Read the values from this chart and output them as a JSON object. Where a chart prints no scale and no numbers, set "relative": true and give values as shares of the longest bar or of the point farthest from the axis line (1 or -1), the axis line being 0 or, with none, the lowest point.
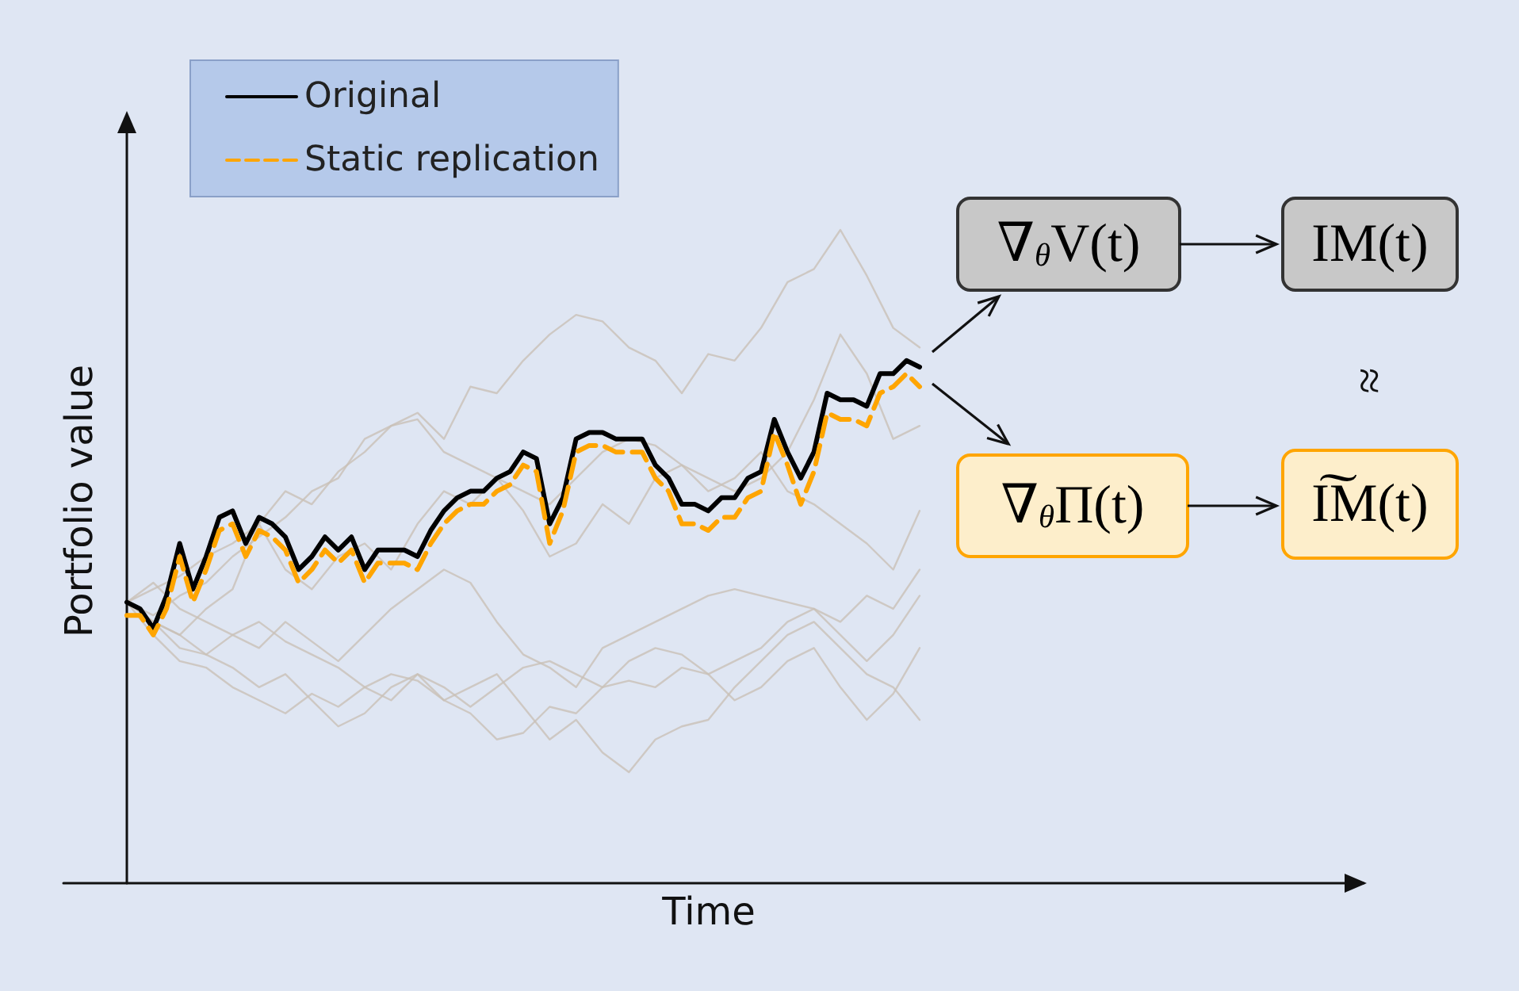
{
  "chart_data": {
    "type": "line",
    "relative": true,
    "xlabel": "Time",
    "ylabel": "Portfolio value",
    "legend": "top left",
    "grid": false,
    "categories": [
      null,
      null,
      null,
      null,
      null,
      null,
      null,
      null,
      null,
      null,
      null,
      null,
      null,
      null,
      null,
      null,
      null,
      null,
      null,
      null,
      null,
      null,
      null,
      null,
      null,
      null,
      null,
      null,
      null,
      null,
      null,
      null,
      null,
      null,
      null,
      null,
      null,
      null,
      null,
      null,
      null,
      null,
      null,
      null,
      null,
      null,
      null,
      null,
      null,
      null,
      null,
      null,
      null,
      null,
      null,
      null,
      null,
      null,
      null,
      null,
      null
    ],
    "series": [
      {
        "color": "#c9c0b6",
        "values": [
          0.43,
          null,
          0.45,
          null,
          0.47,
          null,
          0.5,
          null,
          0.52,
          null,
          0.55,
          null,
          0.6,
          null,
          0.58,
          null,
          0.63,
          null,
          0.66,
          null,
          0.7,
          null,
          0.72,
          null,
          0.68,
          null,
          0.76,
          null,
          0.75,
          null,
          0.8,
          null,
          0.84,
          null,
          0.87,
          null,
          0.86,
          null,
          0.82,
          null,
          0.8,
          null,
          0.75,
          null,
          0.81,
          null,
          0.8,
          null,
          0.85,
          null,
          0.92,
          null,
          0.94,
          null,
          1.0,
          null,
          0.93,
          null,
          0.85,
          null,
          0.82
        ]
      },
      {
        "color": "#c9c0b6",
        "values": [
          0.43,
          null,
          0.41,
          null,
          0.44,
          null,
          0.46,
          null,
          0.5,
          null,
          0.53,
          null,
          0.56,
          null,
          0.6,
          null,
          0.62,
          null,
          0.68,
          null,
          0.7,
          null,
          0.71,
          null,
          0.66,
          null,
          0.64,
          null,
          0.62,
          null,
          0.6,
          null,
          0.58,
          null,
          0.62,
          null,
          0.66,
          null,
          0.68,
          null,
          0.67,
          null,
          0.64,
          null,
          0.62,
          null,
          0.6,
          null,
          0.62,
          null,
          0.66,
          null,
          0.74,
          null,
          0.84,
          null,
          0.78,
          null,
          0.68,
          null,
          0.7
        ]
      },
      {
        "color": "#c9c0b6",
        "values": [
          0.43,
          null,
          0.4,
          null,
          0.38,
          null,
          0.42,
          null,
          0.45,
          null,
          0.55,
          null,
          0.48,
          null,
          0.45,
          null,
          0.5,
          null,
          0.52,
          null,
          0.48,
          null,
          0.55,
          null,
          0.6,
          null,
          0.58,
          null,
          0.62,
          null,
          0.57,
          null,
          0.5,
          null,
          0.52,
          null,
          0.58,
          null,
          0.55,
          null,
          0.62,
          null,
          0.64,
          null,
          0.6,
          null,
          0.62,
          null,
          0.66,
          null,
          0.6,
          null,
          0.58,
          null,
          0.55,
          null,
          0.52,
          null,
          0.48,
          null,
          0.57
        ]
      },
      {
        "color": "#c9c0b6",
        "values": [
          0.43,
          null,
          0.46,
          null,
          0.42,
          null,
          0.4,
          null,
          0.38,
          null,
          0.36,
          null,
          0.4,
          null,
          0.37,
          null,
          0.34,
          null,
          0.38,
          null,
          0.42,
          null,
          0.45,
          null,
          0.48,
          null,
          0.46,
          null,
          0.4,
          null,
          0.35,
          null,
          0.33,
          null,
          0.3,
          null,
          0.36,
          null,
          0.38,
          null,
          0.4,
          null,
          0.42,
          null,
          0.44,
          null,
          0.45,
          null,
          0.44,
          null,
          0.43,
          null,
          0.42,
          null,
          0.4,
          null,
          0.44,
          null,
          0.42,
          null,
          0.48
        ]
      },
      {
        "color": "#c9c0b6",
        "values": [
          0.43,
          null,
          0.4,
          null,
          0.36,
          null,
          0.35,
          null,
          0.38,
          null,
          0.4,
          null,
          0.37,
          null,
          0.35,
          null,
          0.33,
          null,
          0.3,
          null,
          0.28,
          null,
          0.32,
          null,
          0.3,
          null,
          0.27,
          null,
          0.3,
          null,
          0.33,
          null,
          0.34,
          null,
          0.32,
          null,
          0.3,
          null,
          0.34,
          null,
          0.36,
          null,
          0.35,
          null,
          0.32,
          null,
          0.34,
          null,
          0.36,
          null,
          0.4,
          null,
          0.42,
          null,
          0.38,
          null,
          0.34,
          null,
          0.38,
          null,
          0.44
        ]
      },
      {
        "color": "#c9c0b6",
        "values": [
          0.43,
          null,
          0.38,
          null,
          0.34,
          null,
          0.33,
          null,
          0.3,
          null,
          0.28,
          null,
          0.26,
          null,
          0.29,
          null,
          0.27,
          null,
          0.3,
          null,
          0.32,
          null,
          0.31,
          null,
          0.28,
          null,
          0.26,
          null,
          0.22,
          null,
          0.23,
          null,
          0.27,
          null,
          0.26,
          null,
          0.3,
          null,
          0.31,
          null,
          0.3,
          null,
          0.33,
          null,
          0.32,
          null,
          0.28,
          null,
          0.3,
          null,
          0.34,
          null,
          0.36,
          null,
          0.3,
          null,
          0.25,
          null,
          0.29,
          null,
          0.36
        ]
      },
      {
        "color": "#c9c0b6",
        "values": [
          0.43,
          null,
          0.4,
          null,
          0.38,
          null,
          0.35,
          null,
          0.33,
          null,
          0.3,
          null,
          0.32,
          null,
          0.28,
          null,
          0.24,
          null,
          0.26,
          null,
          0.3,
          null,
          0.32,
          null,
          0.28,
          null,
          0.3,
          null,
          0.32,
          null,
          0.27,
          null,
          0.22,
          null,
          0.25,
          null,
          0.2,
          null,
          0.17,
          null,
          0.22,
          null,
          0.24,
          null,
          0.25,
          null,
          0.3,
          null,
          0.34,
          null,
          0.38,
          null,
          0.4,
          null,
          0.36,
          null,
          0.32,
          null,
          0.3,
          null,
          0.25
        ]
      },
      {
        "name": "Original",
        "color": "#000000",
        "values": [
          0.43,
          0.42,
          0.39,
          0.44,
          0.52,
          0.45,
          0.5,
          0.56,
          0.57,
          0.52,
          0.56,
          0.55,
          0.53,
          0.48,
          0.5,
          0.53,
          0.51,
          0.53,
          0.48,
          0.51,
          0.51,
          0.51,
          0.5,
          0.54,
          0.57,
          0.59,
          0.6,
          0.6,
          0.62,
          0.63,
          0.66,
          0.65,
          0.55,
          0.59,
          0.68,
          0.69,
          0.69,
          0.68,
          0.68,
          0.68,
          0.64,
          0.62,
          0.58,
          0.58,
          0.57,
          0.59,
          0.59,
          0.62,
          0.63,
          0.71,
          0.66,
          0.62,
          0.66,
          0.75,
          0.74,
          0.74,
          0.73,
          0.78,
          0.78,
          0.8,
          0.79
        ]
      },
      {
        "name": "Static replication",
        "color": "#ffa500",
        "line_style": "dashed",
        "values": [
          0.41,
          0.41,
          0.38,
          0.42,
          0.5,
          0.43,
          0.48,
          0.54,
          0.55,
          0.5,
          0.54,
          0.53,
          0.51,
          0.46,
          0.48,
          0.51,
          0.49,
          0.51,
          0.46,
          0.49,
          0.49,
          0.49,
          0.48,
          0.52,
          0.55,
          0.57,
          0.58,
          0.58,
          0.6,
          0.61,
          0.64,
          0.63,
          0.52,
          0.57,
          0.66,
          0.67,
          0.67,
          0.66,
          0.66,
          0.66,
          0.62,
          0.6,
          0.55,
          0.55,
          0.54,
          0.56,
          0.56,
          0.59,
          0.6,
          0.69,
          0.64,
          0.58,
          0.63,
          0.72,
          0.71,
          0.71,
          0.7,
          0.75,
          0.76,
          0.78,
          0.76
        ]
      }
    ],
    "annotations": [
      "∇$_{θ}$V(t)",
      "IM(t)",
      "≈",
      "∇$_{θ}$Π(t)",
      "I͠M(t)"
    ]
  }
}
